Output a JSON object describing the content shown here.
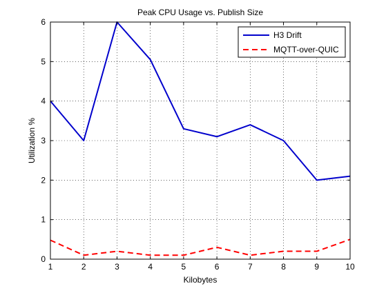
{
  "chart_data": {
    "type": "line",
    "title": "Peak CPU Usage vs. Publish Size",
    "xlabel": "Kilobytes",
    "ylabel": "Utilization %",
    "xlim": [
      1,
      10
    ],
    "ylim": [
      0,
      6
    ],
    "xticks": [
      "1",
      "2",
      "3",
      "4",
      "5",
      "6",
      "7",
      "8",
      "9",
      "10"
    ],
    "yticks": [
      "0",
      "1",
      "2",
      "3",
      "4",
      "5",
      "6"
    ],
    "grid": true,
    "legend_position": "top-right",
    "x": [
      1,
      2,
      3,
      4,
      5,
      6,
      7,
      8,
      9,
      10
    ],
    "series": [
      {
        "name": "H3 Drift",
        "color": "#0000cc",
        "style": "solid",
        "values": [
          4.0,
          3.0,
          6.0,
          5.05,
          3.3,
          3.1,
          3.4,
          3.0,
          2.0,
          2.1
        ]
      },
      {
        "name": "MQTT-over-QUIC",
        "color": "#ff0000",
        "style": "dashed",
        "values": [
          0.48,
          0.1,
          0.2,
          0.1,
          0.1,
          0.3,
          0.1,
          0.2,
          0.2,
          0.5
        ]
      }
    ]
  }
}
